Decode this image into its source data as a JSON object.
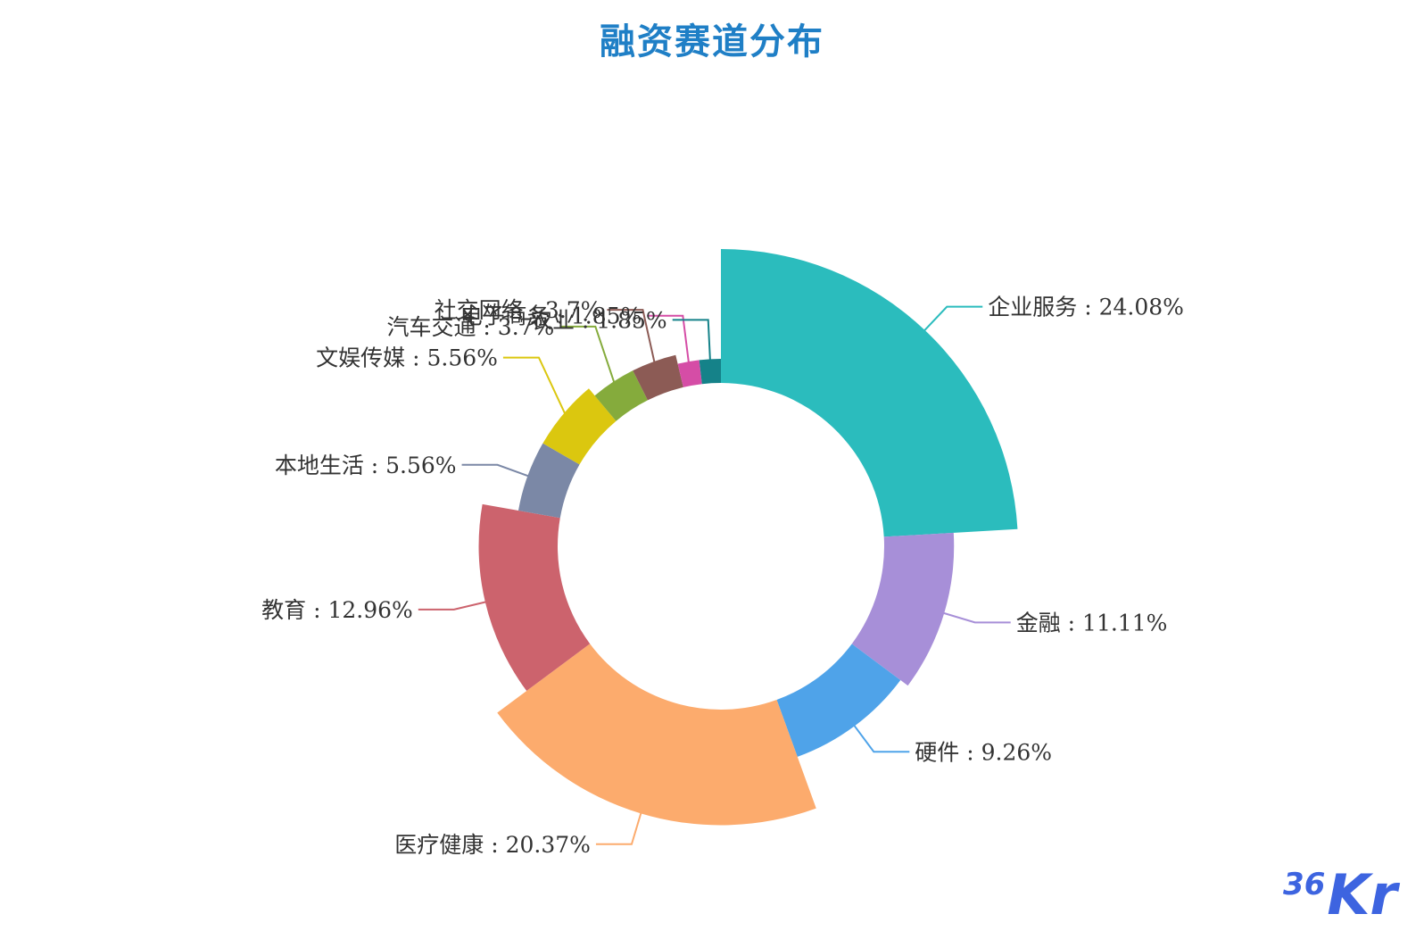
{
  "logo": {
    "num": "36",
    "kr": "Kr"
  },
  "colors": [
    "#2bbcbd",
    "#a78fd8",
    "#4fa3e9",
    "#fcab6d",
    "#cc636d",
    "#7b88a6",
    "#dbc70f",
    "#85ab3c",
    "#8c5b55",
    "#d54da6",
    "#158289"
  ],
  "chart_data": {
    "type": "pie",
    "variant": "rose-donut",
    "title": "融资赛道分布",
    "slices": [
      {
        "name": "企业服务",
        "value": 24.08,
        "label": "企业服务 : 24.08%"
      },
      {
        "name": "金融",
        "value": 11.11,
        "label": "金融 : 11.11%"
      },
      {
        "name": "硬件",
        "value": 9.26,
        "label": "硬件 : 9.26%"
      },
      {
        "name": "医疗健康",
        "value": 20.37,
        "label": "医疗健康 : 20.37%"
      },
      {
        "name": "教育",
        "value": 12.96,
        "label": "教育 : 12.96%"
      },
      {
        "name": "本地生活",
        "value": 5.56,
        "label": "本地生活 : 5.56%"
      },
      {
        "name": "文娱传媒",
        "value": 5.56,
        "label": "文娱传媒 : 5.56%"
      },
      {
        "name": "汽车交通",
        "value": 3.7,
        "label": "汽车交通 : 3.7%"
      },
      {
        "name": "社交网络",
        "value": 3.7,
        "label": "社交网络 : 3.7%"
      },
      {
        "name": "电子商务",
        "value": 1.85,
        "label": "电子商务 : 1.85%"
      },
      {
        "name": "农业",
        "value": 1.85,
        "label": "农业 : 1.85%"
      }
    ]
  }
}
